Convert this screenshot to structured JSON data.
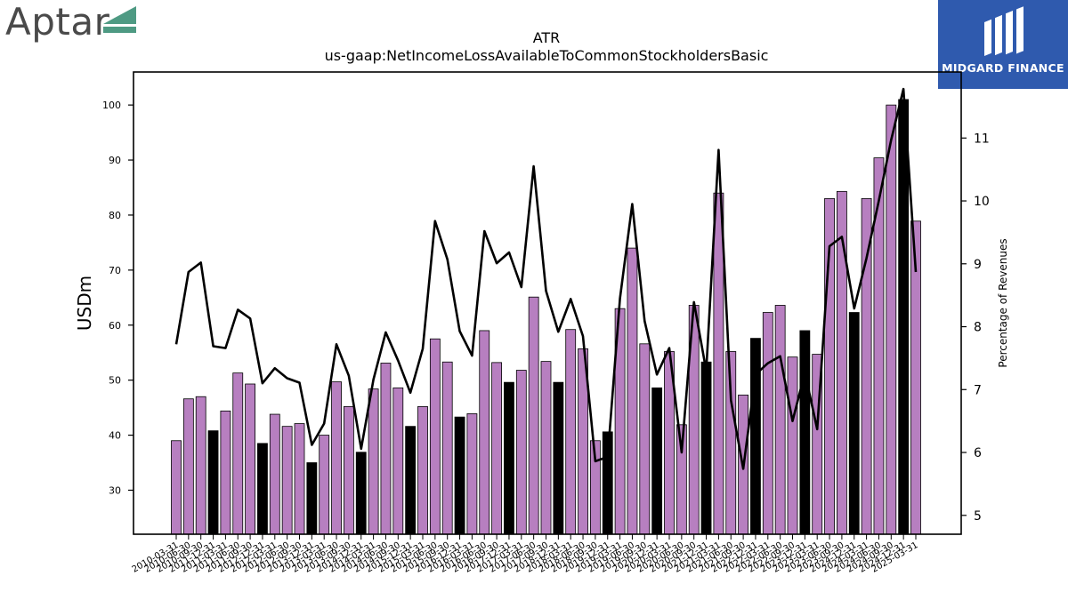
{
  "brand": {
    "left_logo": "Aptar",
    "right_logo": "MIDGARD FINANCE"
  },
  "chart_data": {
    "type": "bar",
    "title": "ATR",
    "subtitle": "us-gaap:NetIncomeLossAvailableToCommonStockholdersBasic",
    "ylabel": "USDm",
    "ylabel_right": "Percentage of Revenues",
    "ylim": [
      22,
      106
    ],
    "ylim_right": [
      4.7,
      12.05
    ],
    "yticks": [
      30,
      40,
      50,
      60,
      70,
      80,
      90,
      100
    ],
    "yticks_right": [
      5,
      6,
      7,
      8,
      9,
      10,
      11
    ],
    "colors": {
      "quarter_bar": "#b77fc0",
      "annual_bar": "#000000",
      "line": "#000000"
    },
    "grid": false,
    "dates": [
      "2010-03-31",
      "2010-06-30",
      "2010-09-30",
      "2010-12-31",
      "2011-03-31",
      "2011-06-30",
      "2011-09-30",
      "2011-12-31",
      "2012-03-31",
      "2012-06-30",
      "2012-09-30",
      "2012-12-31",
      "2013-03-31",
      "2013-06-30",
      "2013-09-30",
      "2013-12-31",
      "2014-03-31",
      "2014-06-30",
      "2014-09-30",
      "2014-12-31",
      "2015-03-31",
      "2015-06-30",
      "2015-09-30",
      "2015-12-31",
      "2016-03-31",
      "2016-06-30",
      "2016-09-30",
      "2016-12-31",
      "2017-03-31",
      "2017-06-30",
      "2017-09-30",
      "2017-12-31",
      "2018-03-31",
      "2018-06-30",
      "2018-09-30",
      "2018-12-31",
      "2019-03-31",
      "2019-06-30",
      "2019-09-30",
      "2019-12-31",
      "2020-03-31",
      "2020-06-30",
      "2020-09-30",
      "2020-12-31",
      "2021-03-31",
      "2021-06-30",
      "2021-09-30",
      "2021-12-31",
      "2022-03-31",
      "2022-06-30",
      "2022-09-30",
      "2022-12-31",
      "2023-03-31",
      "2023-06-30",
      "2023-09-30",
      "2023-12-31",
      "2024-03-31",
      "2024-06-30",
      "2024-09-30",
      "2024-12-31",
      "2025-03-31"
    ],
    "tick_labels": [
      "2010-03-31",
      "2010-06-30",
      "2010-09-30",
      "2011-12-31",
      "2011-03-31",
      "2011-06-30",
      "2011-09-30",
      "2012-12-31",
      "2012-03-31",
      "2012-06-30",
      "2012-09-30",
      "2013-12-31",
      "2013-03-31",
      "2013-06-30",
      "2013-09-30",
      "2014-12-31",
      "2014-03-31",
      "2014-06-30",
      "2014-09-30",
      "2015-12-31",
      "2015-03-31",
      "2015-06-30",
      "2015-09-30",
      "2016-12-31",
      "2016-03-31",
      "2016-06-30",
      "2016-09-30",
      "2017-12-31",
      "2017-03-31",
      "2017-06-30",
      "2017-09-30",
      "2018-12-31",
      "2018-03-31",
      "2018-06-30",
      "2018-09-30",
      "2019-12-31",
      "2019-03-31",
      "2019-06-30",
      "2019-09-30",
      "2020-12-31",
      "2020-03-31",
      "2020-06-30",
      "2020-09-30",
      "2021-12-31",
      "2021-03-31",
      "2021-06-30",
      "2021-09-30",
      "2022-12-31",
      "2022-03-31",
      "2022-06-30",
      "2022-09-30",
      "2023-12-31",
      "2023-03-31",
      "2023-06-30",
      "2023-09-30",
      "2024-12-31",
      "2024-03-31",
      "2024-06-30",
      "2024-09-30",
      "2024-12-31",
      "2025-03-31"
    ],
    "values": [
      39,
      46.6,
      47,
      40.8,
      44.4,
      51.3,
      49.3,
      38.5,
      43.8,
      41.6,
      42.1,
      35,
      40,
      49.7,
      45.2,
      36.9,
      48.4,
      53.1,
      48.6,
      41.6,
      45.2,
      57.5,
      53.3,
      43.3,
      43.9,
      59,
      53.2,
      49.6,
      51.8,
      65.1,
      53.4,
      49.6,
      59.2,
      55.7,
      39,
      40.6,
      63,
      74,
      56.6,
      48.6,
      55.2,
      41.9,
      63.6,
      53.3,
      84,
      55.2,
      47.3,
      57.6,
      62.3,
      63.6,
      54.2,
      59,
      54.7,
      83,
      84.3,
      62.3,
      83,
      90.4,
      100,
      101,
      78.9
    ],
    "is_annual": [
      false,
      false,
      false,
      true,
      false,
      false,
      false,
      true,
      false,
      false,
      false,
      true,
      false,
      false,
      false,
      true,
      false,
      false,
      false,
      true,
      false,
      false,
      false,
      true,
      false,
      false,
      false,
      true,
      false,
      false,
      false,
      true,
      false,
      false,
      false,
      true,
      false,
      false,
      false,
      true,
      false,
      false,
      false,
      true,
      false,
      false,
      false,
      true,
      false,
      false,
      false,
      true,
      false,
      false,
      false,
      true,
      false,
      false,
      false,
      true,
      false
    ],
    "line_values": [
      7.72,
      8.87,
      9.02,
      7.69,
      7.66,
      8.27,
      8.13,
      7.1,
      7.34,
      7.18,
      7.11,
      6.12,
      6.46,
      7.72,
      7.22,
      6.06,
      7.16,
      7.91,
      7.46,
      6.95,
      7.65,
      9.68,
      9.07,
      7.93,
      7.54,
      9.52,
      9.01,
      9.18,
      8.63,
      10.55,
      8.57,
      7.92,
      8.44,
      7.85,
      5.86,
      5.93,
      8.45,
      9.95,
      8.09,
      7.24,
      7.66,
      6.0,
      8.39,
      7.3,
      10.81,
      6.83,
      5.74,
      7.24,
      7.42,
      7.53,
      6.5,
      7.27,
      6.37,
      9.28,
      9.43,
      8.29,
      9.09,
      10.0,
      10.97,
      11.78,
      8.87
    ]
  }
}
